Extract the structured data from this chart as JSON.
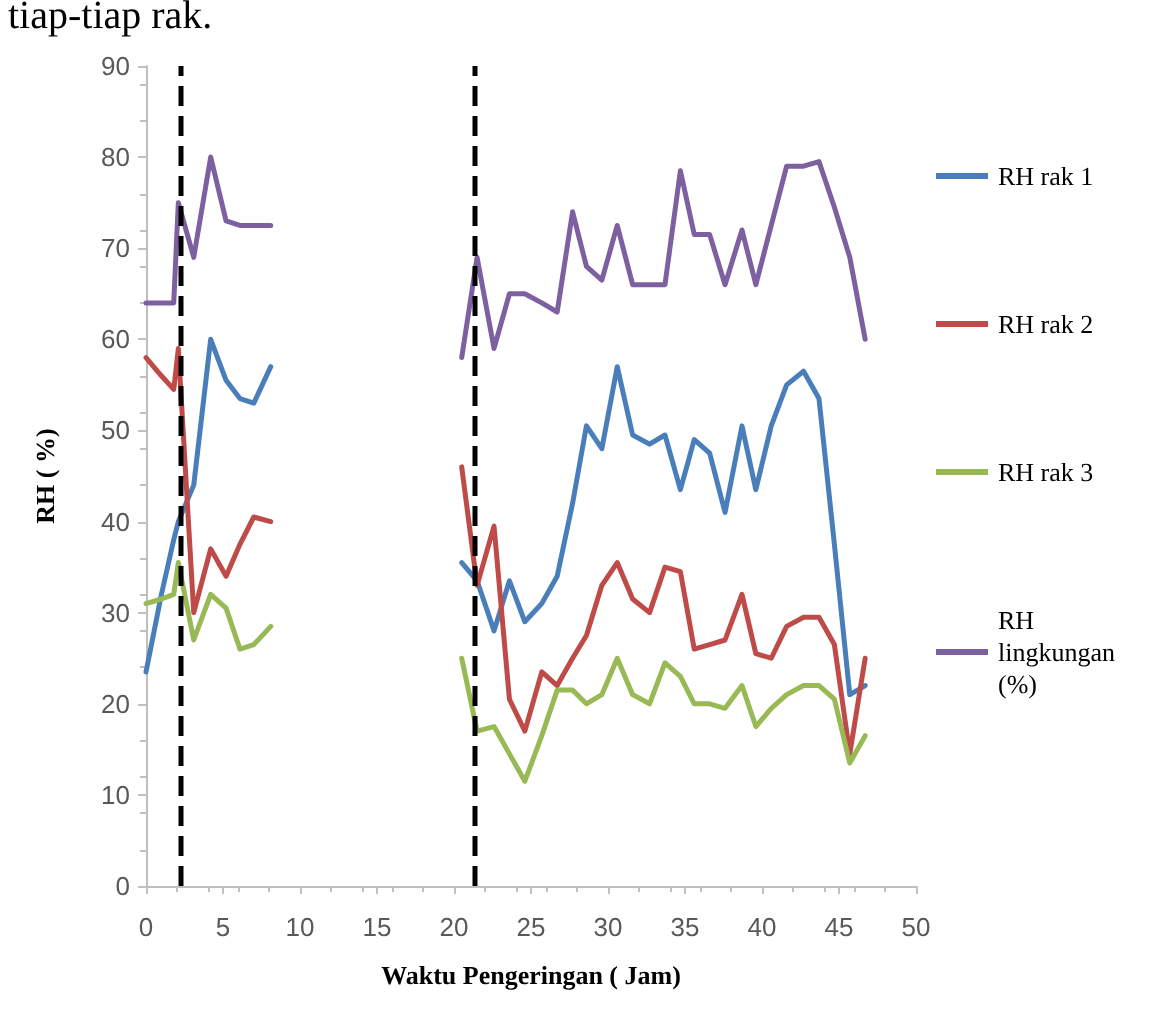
{
  "chart_data": {
    "type": "line",
    "xlabel": "Waktu Pengeringan ( Jam)",
    "ylabel": "RH ( %)",
    "annotations": [
      "tiap-tiap rak."
    ],
    "x": [
      0,
      1,
      1.8,
      2.1,
      3.1,
      4.2,
      5.2,
      6.1,
      7,
      8.1,
      14,
      20.5,
      21.5,
      22.6,
      23.6,
      24.6,
      25.7,
      26.7,
      27.7,
      28.6,
      29.6,
      30.6,
      31.6,
      32.7,
      33.7,
      34.7,
      35.6,
      36.6,
      37.6,
      38.7,
      39.6,
      40.6,
      41.6,
      42.7,
      43.7,
      44.7,
      45.7,
      46.7
    ],
    "series": [
      {
        "name": "RH rak 1",
        "color": "#4a7ebb",
        "values": [
          23.5,
          32,
          38,
          40,
          44,
          60,
          55.5,
          53.5,
          53,
          57,
          null,
          35.5,
          33.5,
          28,
          33.5,
          29,
          31,
          34,
          42,
          50.5,
          48,
          57,
          49.5,
          48.5,
          49.5,
          43.5,
          49,
          47.5,
          41,
          50.5,
          43.5,
          50.5,
          55,
          56.5,
          53.5,
          37.5,
          21,
          22
        ]
      },
      {
        "name": "RH rak 2",
        "color": "#be4b48",
        "values": [
          58,
          56,
          54.5,
          59,
          30,
          37,
          34,
          37.5,
          40.5,
          40,
          null,
          46,
          33,
          39.5,
          20.5,
          17,
          23.5,
          22,
          25,
          27.5,
          33,
          35.5,
          31.5,
          30,
          35,
          34.5,
          26,
          26.5,
          27,
          32,
          25.5,
          25,
          28.5,
          29.5,
          29.5,
          26.5,
          14.5,
          25
        ]
      },
      {
        "name": "RH rak 3",
        "color": "#98b954",
        "values": [
          31,
          31.5,
          32,
          35.5,
          27,
          32,
          30.5,
          26,
          26.5,
          28.5,
          null,
          25,
          17,
          17.5,
          14.5,
          11.5,
          16.5,
          21.5,
          21.5,
          20,
          21,
          25,
          21,
          20,
          24.5,
          23,
          20,
          20,
          19.5,
          22,
          17.5,
          19.5,
          21,
          22,
          22,
          20.5,
          13.5,
          16.5
        ]
      },
      {
        "name": "RH lingkungan (%)",
        "color": "#7d60a0",
        "values": [
          64,
          64,
          64,
          75,
          69,
          80,
          73,
          72.5,
          72.5,
          72.5,
          null,
          58,
          69,
          59,
          65,
          65,
          64,
          63,
          74,
          68,
          66.5,
          72.5,
          66,
          66,
          66,
          78.5,
          71.5,
          71.5,
          66,
          72,
          66,
          72.5,
          79,
          79,
          79.5,
          74.5,
          69,
          60
        ]
      }
    ],
    "xlim": [
      0,
      50
    ],
    "xticks": [
      0,
      5,
      10,
      15,
      20,
      25,
      30,
      35,
      40,
      45,
      50
    ],
    "ylim": [
      0,
      90
    ],
    "yticks": [
      0,
      10,
      20,
      30,
      40,
      50,
      60,
      70,
      80,
      90
    ],
    "ref_lines": [
      {
        "axis": "x",
        "value": 2.2,
        "color": "#000000",
        "line_style": "dashed"
      },
      {
        "axis": "x",
        "value": 21.3,
        "color": "#000000",
        "line_style": "dashed"
      }
    ],
    "grid": false,
    "legend": "right",
    "marker": "none",
    "line_style": "solid"
  }
}
